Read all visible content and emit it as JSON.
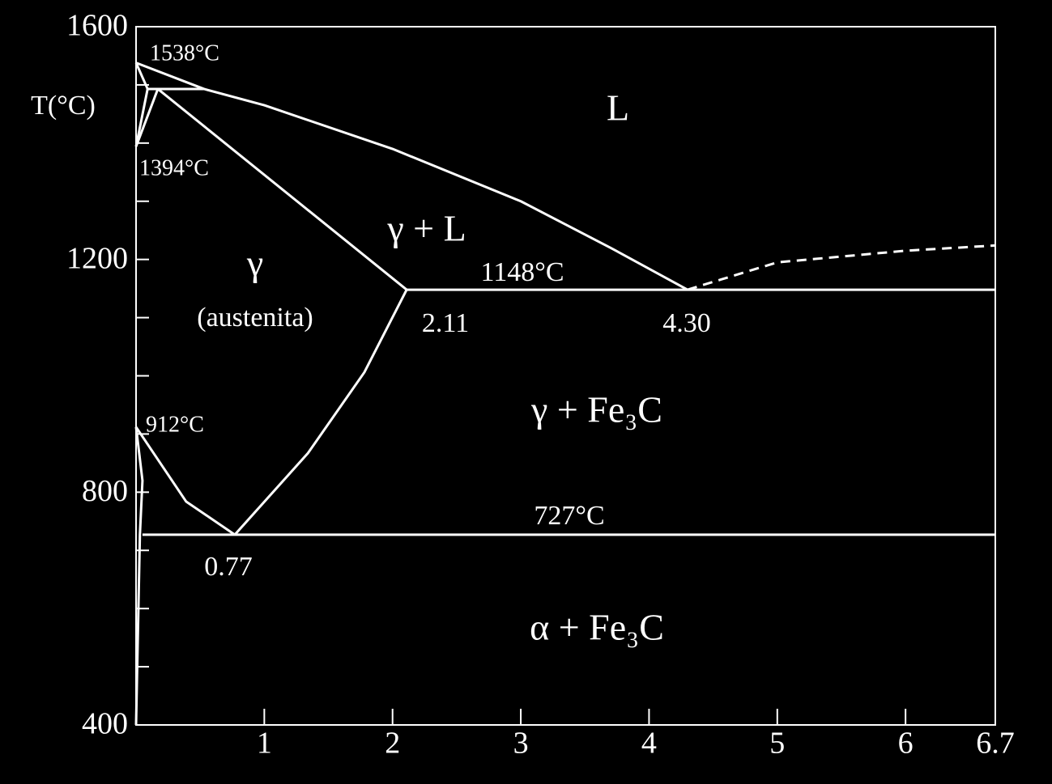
{
  "chart_data": {
    "type": "phase",
    "y_axis_label": "T(°C)",
    "xlim": [
      0,
      6.7
    ],
    "ylim": [
      400,
      1600
    ],
    "xticks": [
      1,
      2,
      3,
      4,
      5,
      6,
      6.7
    ],
    "yticks": [
      400,
      800,
      1200,
      1600
    ],
    "yminor": [
      500,
      600,
      700,
      900,
      1000,
      1100,
      1300,
      1400,
      1500
    ],
    "color": "#ffffff",
    "lines": [
      {
        "x": [
          0,
          0.53,
          1,
          2,
          3,
          3.7,
          4.3
        ],
        "y": [
          1538,
          1493,
          1465,
          1390,
          1300,
          1220,
          1148
        ],
        "dashed": false
      },
      {
        "x": [
          4.3,
          5,
          6,
          6.7
        ],
        "y": [
          1148,
          1195,
          1215,
          1224
        ],
        "dashed": true
      },
      {
        "x": [
          0.17,
          2.11
        ],
        "y": [
          1493,
          1148
        ],
        "dashed": false
      },
      {
        "x": [
          2.11,
          6.7
        ],
        "y": [
          1148,
          1148
        ],
        "dashed": false
      },
      {
        "x": [
          0.77,
          1.34,
          1.78,
          2.11
        ],
        "y": [
          727,
          867,
          1006,
          1148
        ],
        "dashed": false
      },
      {
        "x": [
          0,
          0.39,
          0.77
        ],
        "y": [
          912,
          784,
          727
        ],
        "dashed": false
      },
      {
        "x": [
          0.05,
          6.7
        ],
        "y": [
          727,
          727
        ],
        "dashed": false
      },
      {
        "x": [
          0.09,
          0.53
        ],
        "y": [
          1493,
          1493
        ],
        "dashed": false
      },
      {
        "x": [
          0,
          0.09
        ],
        "y": [
          1538,
          1493
        ],
        "dashed": false
      },
      {
        "x": [
          0,
          0.09
        ],
        "y": [
          1394,
          1493
        ],
        "dashed": false
      },
      {
        "x": [
          0,
          0.17
        ],
        "y": [
          1394,
          1493
        ],
        "dashed": false
      },
      {
        "x": [
          0,
          0.05,
          0.03,
          0
        ],
        "y": [
          912,
          820,
          727,
          400
        ],
        "dashed": false
      }
    ],
    "annotations": [
      "1538°C",
      "1394°C",
      "L",
      "γ + L",
      "1148°C",
      "γ",
      "(austenita)",
      "2.11",
      "4.30",
      "γ + Fe₃C",
      "912°C",
      "727°C",
      "0.77",
      "α + Fe₃C"
    ]
  }
}
